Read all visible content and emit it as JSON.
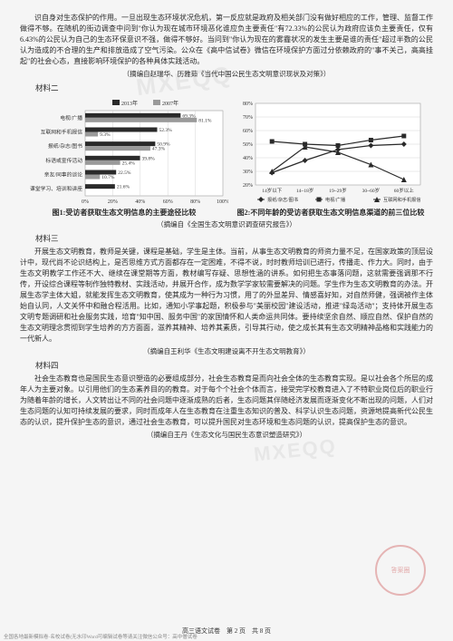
{
  "p1": "识自身对生态保护的作用。一旦出现生态环境状况危机，第一反应就是政府及相关部门没有做好相应的工作，管理、监督工作做得不够。在随机的街边调查中问到\"你认为现在城市环境恶化谁应负主要责任\"有72.33%的公民认为政府应该负主要责任，仅有6.43%的公民认为自己的生态环保意识不强，做得不够好。当问到\"你认为现在的雾霾状况的发生主要是谁的责任\"超过半数的公民认为造成的不合理的生产和排放造成了空气污染。公众在《高中信试卷》微信在环境保护方面过分依赖政府的\"事不关己，高高挂起\"的社会心态，直接影响环境保护的各种具体实践活动。",
  "p1_credit": "（摘编自赵瑞华、历雅茹《当代中国公民生态文明意识现状及对策》）",
  "label_m2": "材料二",
  "chart1": {
    "legend": [
      "2013年",
      "2007年"
    ],
    "legend_colors": [
      "#2a2a2a",
      "#9a9a9a"
    ],
    "categories": [
      "电视/广播",
      "互联网和手机报信",
      "报纸/杂志/图书",
      "标语或宣传活动",
      "亲友/同事的谈论",
      "课堂学习、培训和讲座"
    ],
    "pairs": [
      [
        69.3,
        81.1
      ],
      [
        52.3,
        9.3
      ],
      [
        50.9,
        47.3
      ],
      [
        39.8,
        25.4
      ],
      [
        22.5,
        10.7
      ],
      [
        21.6,
        0
      ]
    ],
    "xlim": [
      0,
      100
    ],
    "xticks": [
      0,
      20,
      40,
      60,
      80,
      100
    ],
    "bg": "#ffffff",
    "grid": "#cccccc",
    "title": "图1:受访者获取生态文明信息的主要途径比较"
  },
  "chart2": {
    "categories": [
      "14岁以下",
      "14~18岁",
      "19~29岁",
      "30~60岁",
      "60岁以上"
    ],
    "series": [
      {
        "name": "报纸/杂志/图书",
        "marker": "diamond",
        "color": "#2a2a2a",
        "values": [
          29,
          38,
          46,
          49,
          50
        ]
      },
      {
        "name": "电视/广播",
        "marker": "square",
        "color": "#2a2a2a",
        "values": [
          52,
          50,
          49,
          53,
          56
        ]
      },
      {
        "name": "互联网和手机报信",
        "marker": "triangle",
        "color": "#2a2a2a",
        "values": [
          30,
          48,
          44,
          35,
          24
        ]
      }
    ],
    "ylim": [
      20,
      80
    ],
    "yticks": [
      20,
      30,
      40,
      50,
      60,
      70,
      80
    ],
    "bg": "#ffffff",
    "grid": "#cccccc",
    "title": "图2:不同年龄的受访者获取生态文明信息渠道的前三位比较"
  },
  "charts_credit": "（摘编自《全国生态文明意识调查研究报告》）",
  "label_m3": "材料三",
  "p3a": "开展生态文明教育，教师是关键，课程是基础，学生是主体。当前，从事生态文明教育的师资力量不足，在国家政策的顶层设计中，现代尚不论识结构上，是否思维方式方面都存在一定困难，不得不说，时时教师培训已进行，传播走、作力大。同时，由于生态文明教学工作还不大、继续在课堂期等方面，教材编写存疑、思想性涵的讲系。如何把生态事落问题，这就需要强调那不行传，开设综合课程等制作独特教材、实践活动，并展开合作，成为数学学家较需要解决的问题。学生作为生态文明教育的办法。开展生态学主体大姐，就能发挥生态文明教育，使其成为一种行为习惯，用了的外显差异、情感喜好知，对自然师健，强调被作主体始自认同，人文关怀中和融合程活用。比如，通知小学事起题，积极参与\"美丽校园\"建设活动，推进\"绿岛活动\"；支持体开展生态文明专题调研和社会服务实践，培育\"知中国、服务中国\"的家国情怀和人类命运共同体。要持续坚余自然、顺应自然、保护自然的生态文明理念贯彻到学生培养的方方面面，滋养其精神、培养其素质，引导其行动，使之成长其有生态文明精神品格和实践能力的一代新人。",
  "p3_credit": "（摘编自王利华《生态文明建设离不开生态文明教育》）",
  "label_m4": "材料四",
  "p4a": "社会生态教育也是国民生态意识塑造的必要组成部分，社会生态教育是而向社会全体的生态教育实现。是以社会各个所层的成年人为主要对象。以引用他们的生态素养目的的教育。对于每个个社会个体而言，接受完学校教育进入了不特职业岗位后的职业行为随着年龄的增长，人文转出让不同的社会问题中逐渐成熟的后者，生态问题其伴随经济发展而逐渐变化不断出现的问题，人们对生态问题的认知可持续发展的要求，同时而成年人在生态教育在注重生态知识的普及、科学认识生态问题，资源地提高新代公民生态的认识，提升保护生态的意识，通过社会生态教育，可以提升国民对生态环境和生态问题的认识，提高保护生态的意识。",
  "p4_credit": "（摘编自王丹《生态文化与国民生态意识塑造研究》）",
  "footer": "高三语文试卷　第 2 页　共 8 页",
  "footer_small": "全国各地最新模拟卷·名校试卷(无水印Word可编辑试卷等请关注微信公众号：高中僧试卷",
  "seal_text": "答案圈",
  "wm": "MXEQQ"
}
